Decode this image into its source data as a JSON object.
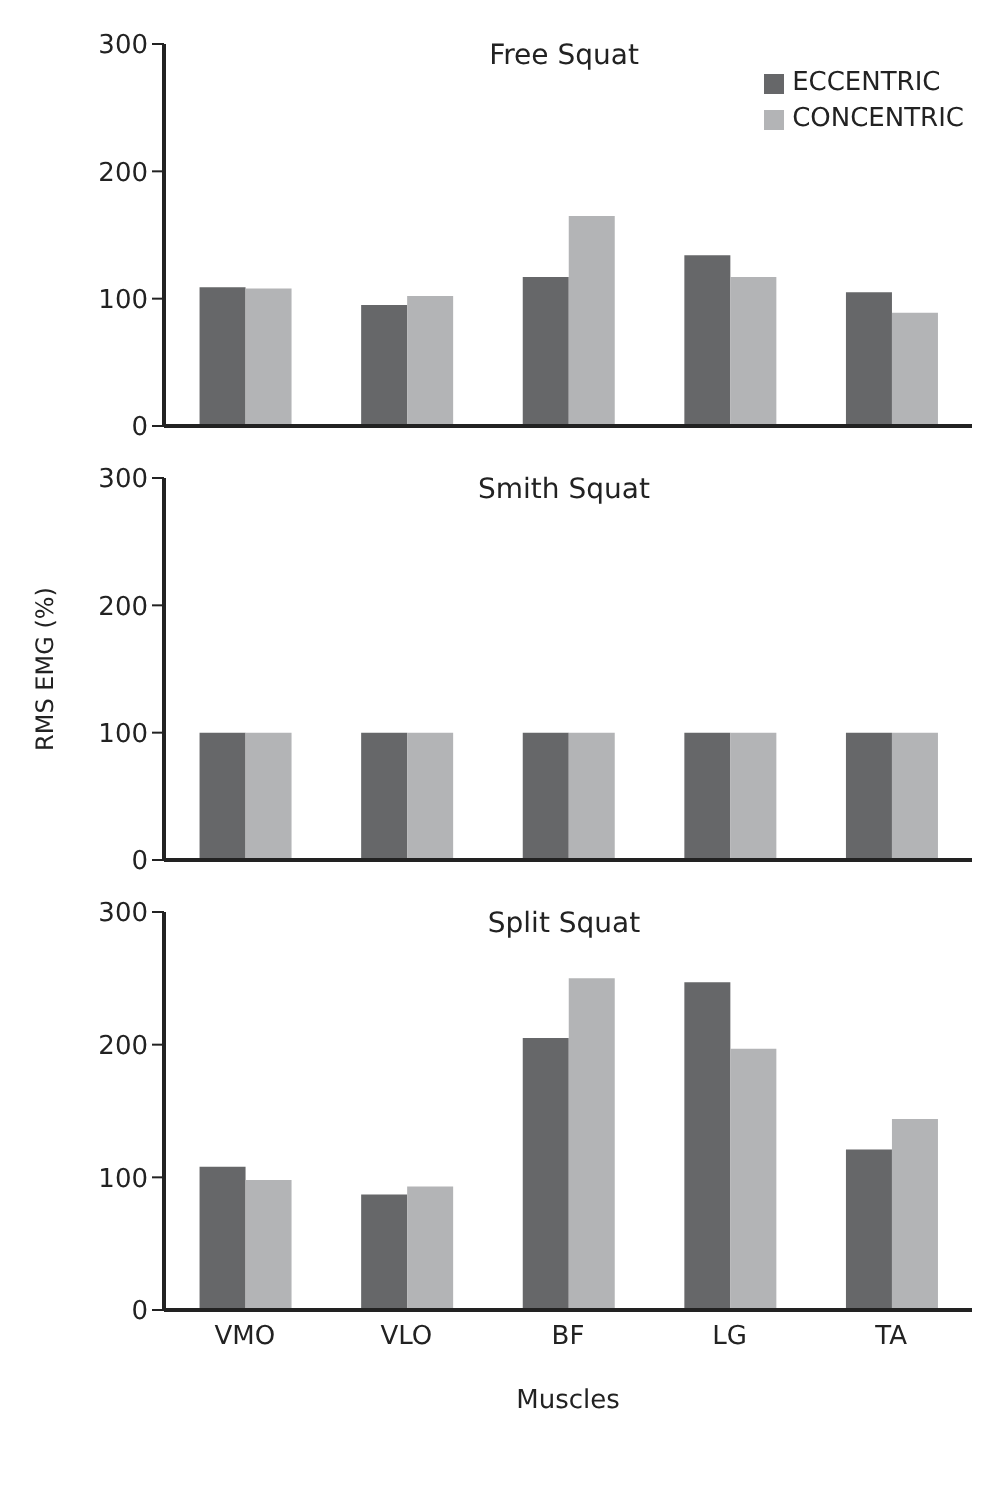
{
  "chart_data": [
    {
      "type": "bar",
      "title": "Free Squat",
      "categories": [
        null,
        null,
        null,
        null,
        null
      ],
      "ylim": [
        0,
        300
      ],
      "yticks": [
        0,
        100,
        200,
        300
      ],
      "grid": false,
      "legend": "top right",
      "tick_labels": "y",
      "series": [
        {
          "name": "ECCENTRIC",
          "color": "#666769",
          "values": [
            109,
            95,
            117,
            134,
            105
          ]
        },
        {
          "name": "CONCENTRIC",
          "color": "#b3b4b6",
          "values": [
            108,
            102,
            165,
            117,
            89
          ]
        }
      ]
    },
    {
      "type": "bar",
      "title": "Smith Squat",
      "ylabel": "RMS EMG (%)",
      "categories": [
        null,
        null,
        null,
        null,
        null
      ],
      "ylim": [
        0,
        300
      ],
      "yticks": [
        0,
        100,
        200,
        300
      ],
      "grid": false,
      "legend": false,
      "tick_labels": "y",
      "series": [
        {
          "color": "#666769",
          "values": [
            100,
            100,
            100,
            100,
            100
          ]
        },
        {
          "color": "#b3b4b6",
          "values": [
            100,
            100,
            100,
            100,
            100
          ]
        }
      ]
    },
    {
      "type": "bar",
      "title": "Split Squat",
      "xlabel": "Muscles",
      "categories": [
        "VMO",
        "VLO",
        "BF",
        "LG",
        "TA"
      ],
      "ylim": [
        0,
        300
      ],
      "yticks": [
        0,
        100,
        200,
        300
      ],
      "grid": false,
      "legend": false,
      "series": [
        {
          "color": "#666769",
          "values": [
            108,
            87,
            205,
            247,
            121
          ]
        },
        {
          "color": "#b3b4b6",
          "values": [
            98,
            93,
            250,
            197,
            144
          ]
        }
      ]
    }
  ]
}
